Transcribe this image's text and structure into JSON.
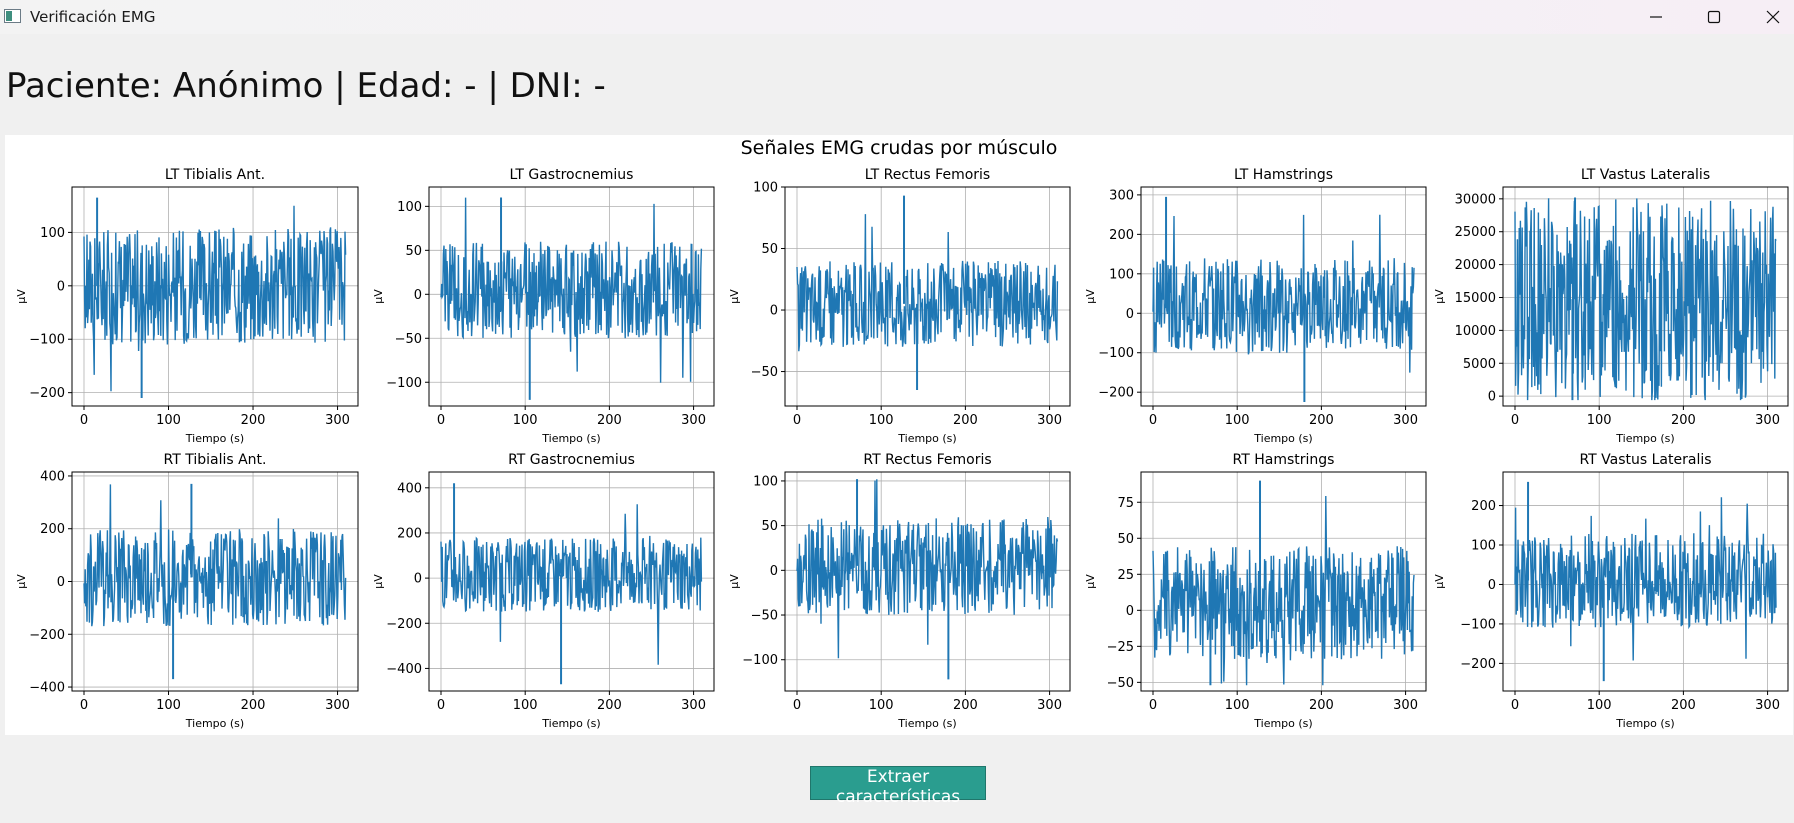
{
  "window": {
    "title": "Verificación EMG"
  },
  "patient_header": "Paciente: Anónimo | Edad: - | DNI: -",
  "button_label": "Extraer características",
  "chart_data": {
    "type": "line",
    "title": "Señales EMG crudas por músculo",
    "color": "#1f77b4",
    "xlabel": "Tiempo (s)",
    "ylabel": "µV",
    "xlim": [
      0,
      310
    ],
    "xticks": [
      0,
      100,
      200,
      300
    ],
    "grid": true,
    "panels": [
      {
        "name": "LT Tibialis Ant.",
        "yticks": [
          100,
          0,
          -100,
          -200
        ],
        "ylim": [
          -225,
          185
        ],
        "envelope": [
          -110,
          110
        ],
        "spikes": [
          165,
          -210
        ]
      },
      {
        "name": "LT Gastrocnemius",
        "yticks": [
          100,
          50,
          0,
          -50,
          -100
        ],
        "ylim": [
          -127,
          122
        ],
        "envelope": [
          -50,
          60
        ],
        "spikes": [
          110,
          -120
        ]
      },
      {
        "name": "LT Rectus Femoris",
        "yticks": [
          100,
          50,
          0,
          -50
        ],
        "ylim": [
          -78,
          100
        ],
        "envelope": [
          -30,
          40
        ],
        "spikes": [
          93,
          -65
        ]
      },
      {
        "name": "LT Hamstrings",
        "yticks": [
          300,
          200,
          100,
          0,
          -100,
          -200
        ],
        "ylim": [
          -235,
          320
        ],
        "envelope": [
          -100,
          140
        ],
        "spikes": [
          295,
          -225
        ]
      },
      {
        "name": "LT Vastus Lateralis",
        "yticks": [
          30000,
          25000,
          20000,
          15000,
          10000,
          5000,
          0
        ],
        "ylim": [
          -1500,
          31800
        ],
        "envelope": [
          -500,
          30000
        ],
        "spikes": [
          30200,
          -600
        ]
      },
      {
        "name": "RT Tibialis Ant.",
        "yticks": [
          400,
          200,
          0,
          -200,
          -400
        ],
        "ylim": [
          -415,
          415
        ],
        "envelope": [
          -170,
          200
        ],
        "spikes": [
          370,
          -370
        ]
      },
      {
        "name": "RT Gastrocnemius",
        "yticks": [
          400,
          200,
          0,
          -200,
          -400
        ],
        "ylim": [
          -500,
          470
        ],
        "envelope": [
          -150,
          180
        ],
        "spikes": [
          420,
          -470
        ]
      },
      {
        "name": "RT Rectus Femoris",
        "yticks": [
          100,
          50,
          0,
          -50,
          -100
        ],
        "ylim": [
          -135,
          110
        ],
        "envelope": [
          -50,
          60
        ],
        "spikes": [
          102,
          -122
        ]
      },
      {
        "name": "RT Hamstrings",
        "yticks": [
          75,
          50,
          25,
          0,
          -25,
          -50
        ],
        "ylim": [
          -56,
          96
        ],
        "envelope": [
          -35,
          45
        ],
        "spikes": [
          90,
          -52
        ]
      },
      {
        "name": "RT Vastus Lateralis",
        "yticks": [
          200,
          100,
          0,
          -100,
          -200
        ],
        "ylim": [
          -270,
          285
        ],
        "envelope": [
          -110,
          130
        ],
        "spikes": [
          260,
          -245
        ]
      }
    ]
  }
}
